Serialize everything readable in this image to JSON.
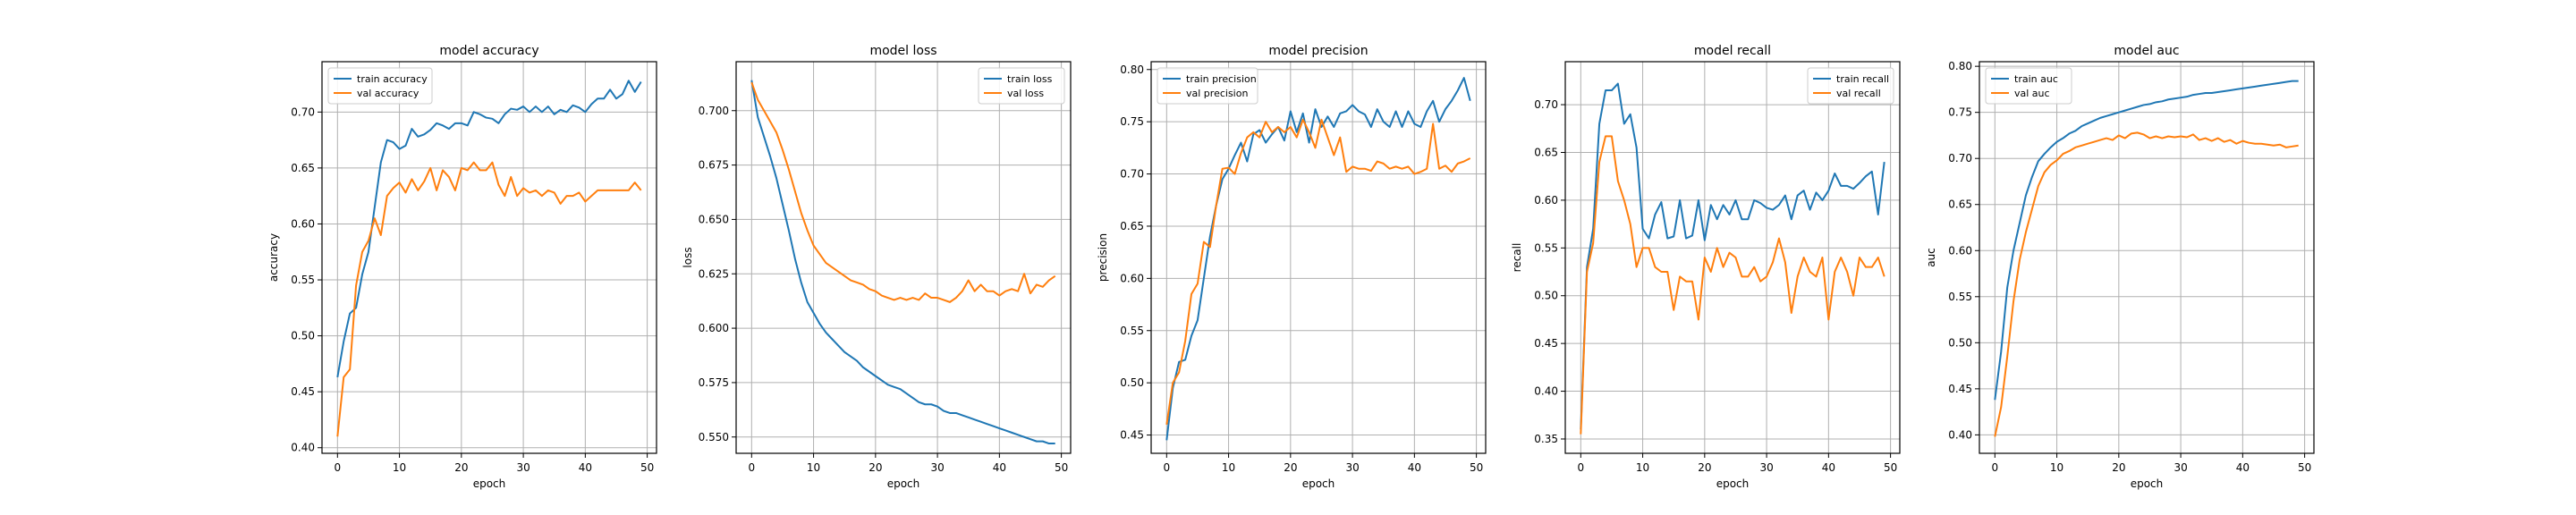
{
  "colors": {
    "train": "#1f77b4",
    "val": "#ff7f0e",
    "grid": "#b0b0b0",
    "axis": "#000000"
  },
  "chart_data": [
    {
      "type": "line",
      "title": "model accuracy",
      "xlabel": "epoch",
      "ylabel": "accuracy",
      "xlim": [
        -2.5,
        51.5
      ],
      "ylim": [
        0.395,
        0.745
      ],
      "xticks": [
        0,
        10,
        20,
        30,
        40,
        50
      ],
      "yticks": [
        0.4,
        0.45,
        0.5,
        0.55,
        0.6,
        0.65,
        0.7
      ],
      "ytick_labels": [
        "0.40",
        "0.45",
        "0.50",
        "0.55",
        "0.60",
        "0.65",
        "0.70"
      ],
      "grid": true,
      "legend": "upper-left",
      "x": [
        0,
        1,
        2,
        3,
        4,
        5,
        6,
        7,
        8,
        9,
        10,
        11,
        12,
        13,
        14,
        15,
        16,
        17,
        18,
        19,
        20,
        21,
        22,
        23,
        24,
        25,
        26,
        27,
        28,
        29,
        30,
        31,
        32,
        33,
        34,
        35,
        36,
        37,
        38,
        39,
        40,
        41,
        42,
        43,
        44,
        45,
        46,
        47,
        48,
        49
      ],
      "series": [
        {
          "name": "train accuracy",
          "color_key": "train",
          "values": [
            0.463,
            0.495,
            0.52,
            0.525,
            0.555,
            0.575,
            0.615,
            0.655,
            0.675,
            0.673,
            0.667,
            0.67,
            0.685,
            0.678,
            0.68,
            0.684,
            0.69,
            0.688,
            0.685,
            0.69,
            0.69,
            0.688,
            0.7,
            0.698,
            0.695,
            0.694,
            0.69,
            0.698,
            0.703,
            0.702,
            0.705,
            0.7,
            0.705,
            0.7,
            0.705,
            0.698,
            0.702,
            0.7,
            0.706,
            0.704,
            0.7,
            0.707,
            0.712,
            0.712,
            0.72,
            0.712,
            0.716,
            0.728,
            0.718,
            0.727
          ]
        },
        {
          "name": "val accuracy",
          "color_key": "val",
          "values": [
            0.41,
            0.463,
            0.47,
            0.545,
            0.575,
            0.585,
            0.605,
            0.59,
            0.625,
            0.632,
            0.637,
            0.628,
            0.64,
            0.63,
            0.638,
            0.65,
            0.63,
            0.648,
            0.642,
            0.63,
            0.65,
            0.648,
            0.655,
            0.648,
            0.648,
            0.655,
            0.635,
            0.625,
            0.642,
            0.625,
            0.632,
            0.628,
            0.63,
            0.625,
            0.63,
            0.628,
            0.618,
            0.625,
            0.625,
            0.628,
            0.62,
            0.625,
            0.63,
            0.63,
            0.63,
            0.63,
            0.63,
            0.63,
            0.637,
            0.63
          ]
        }
      ]
    },
    {
      "type": "line",
      "title": "model loss",
      "xlabel": "epoch",
      "ylabel": "loss",
      "xlim": [
        -2.5,
        51.5
      ],
      "ylim": [
        0.5425,
        0.7225
      ],
      "xticks": [
        0,
        10,
        20,
        30,
        40,
        50
      ],
      "yticks": [
        0.55,
        0.575,
        0.6,
        0.625,
        0.65,
        0.675,
        0.7
      ],
      "ytick_labels": [
        "0.550",
        "0.575",
        "0.600",
        "0.625",
        "0.650",
        "0.675",
        "0.700"
      ],
      "grid": true,
      "legend": "upper-right",
      "x": [
        0,
        1,
        2,
        3,
        4,
        5,
        6,
        7,
        8,
        9,
        10,
        11,
        12,
        13,
        14,
        15,
        16,
        17,
        18,
        19,
        20,
        21,
        22,
        23,
        24,
        25,
        26,
        27,
        28,
        29,
        30,
        31,
        32,
        33,
        34,
        35,
        36,
        37,
        38,
        39,
        40,
        41,
        42,
        43,
        44,
        45,
        46,
        47,
        48,
        49
      ],
      "series": [
        {
          "name": "train loss",
          "color_key": "train",
          "values": [
            0.714,
            0.697,
            0.688,
            0.679,
            0.669,
            0.657,
            0.645,
            0.632,
            0.621,
            0.612,
            0.607,
            0.602,
            0.598,
            0.595,
            0.592,
            0.589,
            0.587,
            0.585,
            0.582,
            0.58,
            0.578,
            0.576,
            0.574,
            0.573,
            0.572,
            0.57,
            0.568,
            0.566,
            0.565,
            0.565,
            0.564,
            0.562,
            0.561,
            0.561,
            0.56,
            0.559,
            0.558,
            0.557,
            0.556,
            0.555,
            0.554,
            0.553,
            0.552,
            0.551,
            0.55,
            0.549,
            0.548,
            0.548,
            0.547,
            0.547
          ]
        },
        {
          "name": "val loss",
          "color_key": "val",
          "values": [
            0.713,
            0.705,
            0.7,
            0.695,
            0.69,
            0.682,
            0.673,
            0.663,
            0.653,
            0.645,
            0.638,
            0.634,
            0.63,
            0.628,
            0.626,
            0.624,
            0.622,
            0.621,
            0.62,
            0.618,
            0.617,
            0.615,
            0.614,
            0.613,
            0.614,
            0.613,
            0.614,
            0.613,
            0.616,
            0.614,
            0.614,
            0.613,
            0.612,
            0.614,
            0.617,
            0.622,
            0.617,
            0.62,
            0.617,
            0.617,
            0.615,
            0.617,
            0.618,
            0.617,
            0.625,
            0.616,
            0.62,
            0.619,
            0.622,
            0.624
          ]
        }
      ]
    },
    {
      "type": "line",
      "title": "model precision",
      "xlabel": "epoch",
      "ylabel": "precision",
      "xlim": [
        -2.5,
        51.5
      ],
      "ylim": [
        0.4325,
        0.8075
      ],
      "xticks": [
        0,
        10,
        20,
        30,
        40,
        50
      ],
      "yticks": [
        0.45,
        0.5,
        0.55,
        0.6,
        0.65,
        0.7,
        0.75,
        0.8
      ],
      "ytick_labels": [
        "0.45",
        "0.50",
        "0.55",
        "0.60",
        "0.65",
        "0.70",
        "0.75",
        "0.80"
      ],
      "grid": true,
      "legend": "upper-left",
      "x": [
        0,
        1,
        2,
        3,
        4,
        5,
        6,
        7,
        8,
        9,
        10,
        11,
        12,
        13,
        14,
        15,
        16,
        17,
        18,
        19,
        20,
        21,
        22,
        23,
        24,
        25,
        26,
        27,
        28,
        29,
        30,
        31,
        32,
        33,
        34,
        35,
        36,
        37,
        38,
        39,
        40,
        41,
        42,
        43,
        44,
        45,
        46,
        47,
        48,
        49
      ],
      "series": [
        {
          "name": "train precision",
          "color_key": "train",
          "values": [
            0.445,
            0.495,
            0.52,
            0.522,
            0.545,
            0.56,
            0.6,
            0.64,
            0.67,
            0.695,
            0.705,
            0.718,
            0.73,
            0.712,
            0.738,
            0.742,
            0.73,
            0.738,
            0.745,
            0.732,
            0.76,
            0.74,
            0.758,
            0.73,
            0.762,
            0.745,
            0.755,
            0.745,
            0.758,
            0.76,
            0.766,
            0.76,
            0.757,
            0.745,
            0.762,
            0.75,
            0.745,
            0.76,
            0.745,
            0.76,
            0.748,
            0.745,
            0.76,
            0.77,
            0.75,
            0.762,
            0.77,
            0.78,
            0.792,
            0.77
          ]
        },
        {
          "name": "val precision",
          "color_key": "val",
          "values": [
            0.46,
            0.5,
            0.51,
            0.54,
            0.585,
            0.595,
            0.635,
            0.63,
            0.67,
            0.705,
            0.706,
            0.7,
            0.72,
            0.735,
            0.74,
            0.735,
            0.75,
            0.74,
            0.745,
            0.74,
            0.745,
            0.735,
            0.752,
            0.74,
            0.725,
            0.752,
            0.735,
            0.718,
            0.735,
            0.702,
            0.707,
            0.705,
            0.705,
            0.703,
            0.712,
            0.71,
            0.705,
            0.707,
            0.705,
            0.707,
            0.7,
            0.702,
            0.705,
            0.748,
            0.705,
            0.708,
            0.702,
            0.71,
            0.712,
            0.715
          ]
        }
      ]
    },
    {
      "type": "line",
      "title": "model recall",
      "xlabel": "epoch",
      "ylabel": "recall",
      "xlim": [
        -2.5,
        51.5
      ],
      "ylim": [
        0.335,
        0.745
      ],
      "xticks": [
        0,
        10,
        20,
        30,
        40,
        50
      ],
      "yticks": [
        0.35,
        0.4,
        0.45,
        0.5,
        0.55,
        0.6,
        0.65,
        0.7
      ],
      "ytick_labels": [
        "0.35",
        "0.40",
        "0.45",
        "0.50",
        "0.55",
        "0.60",
        "0.65",
        "0.70"
      ],
      "grid": true,
      "legend": "upper-right",
      "x": [
        0,
        1,
        2,
        3,
        4,
        5,
        6,
        7,
        8,
        9,
        10,
        11,
        12,
        13,
        14,
        15,
        16,
        17,
        18,
        19,
        20,
        21,
        22,
        23,
        24,
        25,
        26,
        27,
        28,
        29,
        30,
        31,
        32,
        33,
        34,
        35,
        36,
        37,
        38,
        39,
        40,
        41,
        42,
        43,
        44,
        45,
        46,
        47,
        48,
        49
      ],
      "series": [
        {
          "name": "train recall",
          "color_key": "train",
          "values": [
            0.36,
            0.53,
            0.57,
            0.68,
            0.715,
            0.715,
            0.722,
            0.68,
            0.69,
            0.655,
            0.57,
            0.56,
            0.585,
            0.598,
            0.56,
            0.562,
            0.6,
            0.56,
            0.563,
            0.6,
            0.558,
            0.595,
            0.58,
            0.595,
            0.585,
            0.6,
            0.58,
            0.58,
            0.6,
            0.597,
            0.592,
            0.59,
            0.595,
            0.605,
            0.58,
            0.605,
            0.61,
            0.59,
            0.608,
            0.6,
            0.61,
            0.628,
            0.615,
            0.615,
            0.612,
            0.618,
            0.625,
            0.63,
            0.585,
            0.64
          ]
        },
        {
          "name": "val recall",
          "color_key": "val",
          "values": [
            0.355,
            0.525,
            0.555,
            0.64,
            0.667,
            0.667,
            0.62,
            0.6,
            0.575,
            0.53,
            0.55,
            0.55,
            0.53,
            0.525,
            0.525,
            0.485,
            0.52,
            0.515,
            0.515,
            0.475,
            0.54,
            0.525,
            0.55,
            0.53,
            0.545,
            0.54,
            0.52,
            0.52,
            0.53,
            0.515,
            0.52,
            0.535,
            0.56,
            0.535,
            0.482,
            0.52,
            0.54,
            0.525,
            0.52,
            0.54,
            0.475,
            0.525,
            0.54,
            0.525,
            0.5,
            0.54,
            0.53,
            0.53,
            0.54,
            0.52
          ]
        }
      ]
    },
    {
      "type": "line",
      "title": "model auc",
      "xlabel": "epoch",
      "ylabel": "auc",
      "xlim": [
        -2.5,
        51.5
      ],
      "ylim": [
        0.38,
        0.805
      ],
      "xticks": [
        0,
        10,
        20,
        30,
        40,
        50
      ],
      "yticks": [
        0.4,
        0.45,
        0.5,
        0.55,
        0.6,
        0.65,
        0.7,
        0.75,
        0.8
      ],
      "ytick_labels": [
        "0.40",
        "0.45",
        "0.50",
        "0.55",
        "0.60",
        "0.65",
        "0.70",
        "0.75",
        "0.80"
      ],
      "grid": true,
      "legend": "upper-left",
      "x": [
        0,
        1,
        2,
        3,
        4,
        5,
        6,
        7,
        8,
        9,
        10,
        11,
        12,
        13,
        14,
        15,
        16,
        17,
        18,
        19,
        20,
        21,
        22,
        23,
        24,
        25,
        26,
        27,
        28,
        29,
        30,
        31,
        32,
        33,
        34,
        35,
        36,
        37,
        38,
        39,
        40,
        41,
        42,
        43,
        44,
        45,
        46,
        47,
        48,
        49
      ],
      "series": [
        {
          "name": "train auc",
          "color_key": "train",
          "values": [
            0.438,
            0.49,
            0.56,
            0.6,
            0.63,
            0.66,
            0.68,
            0.697,
            0.705,
            0.712,
            0.718,
            0.722,
            0.727,
            0.73,
            0.735,
            0.738,
            0.741,
            0.744,
            0.746,
            0.748,
            0.75,
            0.752,
            0.754,
            0.756,
            0.758,
            0.759,
            0.761,
            0.762,
            0.764,
            0.765,
            0.766,
            0.767,
            0.769,
            0.77,
            0.771,
            0.771,
            0.772,
            0.773,
            0.774,
            0.775,
            0.776,
            0.777,
            0.778,
            0.779,
            0.78,
            0.781,
            0.782,
            0.783,
            0.784,
            0.784
          ]
        },
        {
          "name": "val auc",
          "color_key": "val",
          "values": [
            0.398,
            0.43,
            0.485,
            0.545,
            0.59,
            0.62,
            0.645,
            0.67,
            0.685,
            0.693,
            0.698,
            0.705,
            0.708,
            0.712,
            0.714,
            0.716,
            0.718,
            0.72,
            0.722,
            0.72,
            0.725,
            0.722,
            0.727,
            0.728,
            0.726,
            0.722,
            0.724,
            0.722,
            0.724,
            0.723,
            0.724,
            0.723,
            0.726,
            0.72,
            0.722,
            0.719,
            0.722,
            0.718,
            0.72,
            0.716,
            0.719,
            0.717,
            0.716,
            0.716,
            0.715,
            0.714,
            0.715,
            0.712,
            0.713,
            0.714
          ]
        }
      ]
    }
  ]
}
